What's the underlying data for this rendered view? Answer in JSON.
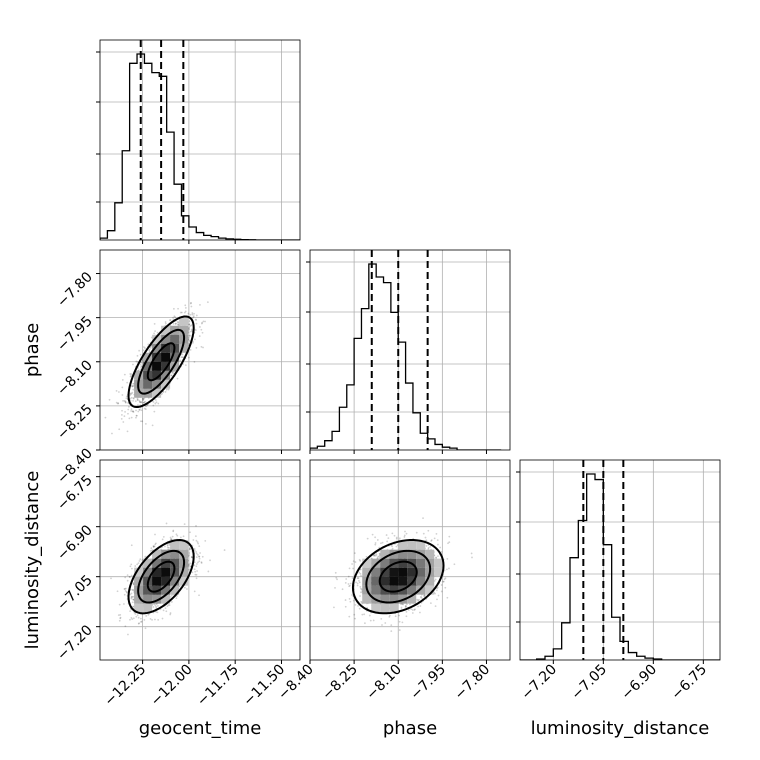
{
  "chart_data": {
    "type": "corner",
    "params": [
      "geocent_time",
      "phase",
      "luminosity_distance"
    ],
    "axis_ranges": {
      "geocent_time": [
        -12.48,
        -11.4
      ],
      "phase": [
        -8.4,
        -7.72
      ],
      "luminosity_distance": [
        -7.3,
        -6.7
      ]
    },
    "ticks": {
      "geocent_time": [
        -12.25,
        -12.0,
        -11.75,
        -11.5
      ],
      "phase": [
        -8.4,
        -8.25,
        -8.1,
        -7.95,
        -7.8
      ],
      "luminosity_distance": [
        -7.2,
        -7.05,
        -6.9,
        -6.75
      ]
    },
    "tick_labels": {
      "geocent_time": [
        "−12.25",
        "−12.00",
        "−11.75",
        "−11.50"
      ],
      "phase": [
        "−8.40",
        "−8.25",
        "−8.10",
        "−7.95",
        "−7.80"
      ],
      "luminosity_distance": [
        "−7.20",
        "−7.05",
        "−6.90",
        "−6.75"
      ]
    },
    "grid": true,
    "quantiles": {
      "geocent_time": [
        -12.26,
        -12.15,
        -12.03
      ],
      "phase": [
        -8.19,
        -8.1,
        -8.0
      ],
      "luminosity_distance": [
        -7.11,
        -7.05,
        -6.99
      ]
    },
    "histograms": {
      "geocent_time": {
        "bins": [
          -12.48,
          -12.44,
          -12.4,
          -12.36,
          -12.32,
          -12.28,
          -12.24,
          -12.2,
          -12.16,
          -12.12,
          -12.08,
          -12.04,
          -12.0,
          -11.96,
          -11.92,
          -11.88,
          -11.84,
          -11.8,
          -11.76,
          -11.72,
          -11.68,
          -11.64,
          -11.6,
          -11.56,
          -11.52,
          -11.48,
          -11.44,
          -11.4
        ],
        "counts": [
          0.01,
          0.05,
          0.2,
          0.48,
          0.95,
          1.0,
          0.95,
          0.9,
          0.88,
          0.58,
          0.3,
          0.13,
          0.07,
          0.04,
          0.025,
          0.018,
          0.01,
          0.006,
          0.004,
          0.002,
          0.001,
          0,
          0,
          0,
          0,
          0,
          0
        ]
      },
      "phase": {
        "bins": [
          -8.4,
          -8.375,
          -8.35,
          -8.325,
          -8.3,
          -8.275,
          -8.25,
          -8.225,
          -8.2,
          -8.175,
          -8.15,
          -8.125,
          -8.1,
          -8.075,
          -8.05,
          -8.025,
          -8.0,
          -7.975,
          -7.95,
          -7.925,
          -7.9,
          -7.875,
          -7.85,
          -7.825,
          -7.8,
          -7.775,
          -7.75
        ],
        "counts": [
          0.01,
          0.02,
          0.05,
          0.1,
          0.23,
          0.35,
          0.6,
          0.76,
          1.0,
          0.93,
          0.9,
          0.74,
          0.58,
          0.36,
          0.2,
          0.09,
          0.06,
          0.03,
          0.015,
          0.01,
          0,
          0,
          0,
          0,
          0,
          0
        ]
      },
      "luminosity_distance": {
        "bins": [
          -7.3,
          -7.275,
          -7.25,
          -7.225,
          -7.2,
          -7.175,
          -7.15,
          -7.125,
          -7.1,
          -7.075,
          -7.05,
          -7.025,
          -7.0,
          -6.975,
          -6.95,
          -6.925,
          -6.9,
          -6.875,
          -6.85,
          -6.825,
          -6.8,
          -6.775,
          -6.75,
          -6.725,
          -6.7
        ],
        "counts": [
          0,
          0,
          0.005,
          0.02,
          0.06,
          0.2,
          0.55,
          0.75,
          1.0,
          0.97,
          0.62,
          0.23,
          0.1,
          0.04,
          0.02,
          0.01,
          0.005,
          0,
          0,
          0,
          0,
          0,
          0,
          0
        ]
      }
    },
    "pairs": [
      {
        "x": "geocent_time",
        "y": "phase",
        "mean": [
          -12.15,
          -8.1
        ],
        "sigma": [
          0.08,
          0.07
        ],
        "corr": 0.75
      },
      {
        "x": "geocent_time",
        "y": "luminosity_distance",
        "mean": [
          -12.15,
          -7.05
        ],
        "sigma": [
          0.08,
          0.05
        ],
        "corr": 0.55
      },
      {
        "x": "phase",
        "y": "luminosity_distance",
        "mean": [
          -8.1,
          -7.05
        ],
        "sigma": [
          0.07,
          0.05
        ],
        "corr": 0.3
      }
    ],
    "xlabels": [
      "geocent_time",
      "phase",
      "luminosity_distance"
    ],
    "ylabels": [
      "phase",
      "luminosity_distance"
    ]
  }
}
